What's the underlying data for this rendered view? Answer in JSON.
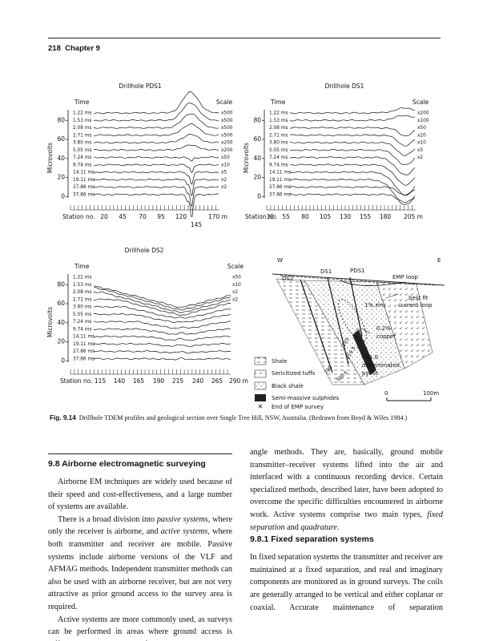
{
  "header": {
    "page": "218",
    "chapter": "Chapter 9"
  },
  "figure": {
    "times": [
      "1.22 ms",
      "1.53 ms",
      "2.08 ms",
      "2.71 ms",
      "3.80 ms",
      "5.05 ms",
      "7.24 ms",
      "9.74 ms",
      "14.11 ms",
      "19.11 ms",
      "27.86 ms",
      "37.86 ms"
    ],
    "panels": [
      {
        "title": "Drillhole PDS1",
        "time_heading": "Time",
        "scale_heading": "Scale",
        "y_label": "Microvolts",
        "y_ticks": [
          "80",
          "60",
          "40",
          "20",
          "0"
        ],
        "scales": [
          "x500",
          "x500",
          "x500",
          "x500",
          "x200",
          "x200",
          "x50",
          "x10",
          "x5",
          "x2",
          "x2"
        ],
        "station_label": "Station no.",
        "stations": [
          "20",
          "45",
          "70",
          "95",
          "120",
          "170 m"
        ],
        "extra_station": "145"
      },
      {
        "title": "Drillhole  DS1",
        "time_heading": "Time",
        "scale_heading": "Scale",
        "y_label": "Microvolts",
        "y_ticks": [
          "80",
          "60",
          "40",
          "20",
          "0"
        ],
        "scales": [
          "x200",
          "x100",
          "x50",
          "x20",
          "x10",
          "x5",
          "x2"
        ],
        "station_label": "Station no.",
        "stations": [
          "30",
          "55",
          "80",
          "105",
          "130",
          "155",
          "180",
          "205 m"
        ]
      },
      {
        "title": "Drillhole  DS2",
        "time_heading": "Time",
        "scale_heading": "Scale",
        "y_label": "Microvolts",
        "y_ticks": [
          "80",
          "60",
          "40",
          "20",
          "0"
        ],
        "scales": [
          "x50",
          "x10",
          "x2",
          "x2"
        ],
        "station_label": "Station no.",
        "stations": [
          "115",
          "140",
          "165",
          "190",
          "215",
          "240",
          "265",
          "290 m"
        ]
      }
    ],
    "section": {
      "west": "W",
      "east": "E",
      "holes": [
        "DS2",
        "DS1",
        "PDS1"
      ],
      "emp_loop": "EMP loop",
      "best_fit": [
        "best fit",
        "current loop"
      ],
      "zinc": "1% zinc",
      "copper": [
        "0.2%",
        "copper"
      ],
      "pyrite": [
        "241.0",
        "disseminated",
        "pyrite"
      ],
      "depths": [
        "205",
        "170",
        "219.5",
        "290",
        "300.6"
      ],
      "legend": [
        "Shale",
        "Sericitized tuffs",
        "Black shale",
        "Semi-massive sulphides",
        "End of EMP survey"
      ],
      "scale_bar": [
        "0",
        "100m"
      ]
    },
    "caption": {
      "label": "Fig. 9.14",
      "text": "Drillhole TDEM profiles and geological section over Single Tree Hill, NSW, Australia. (Redrawn from Boyd & Wiles 1984.)"
    }
  },
  "body": {
    "left": [
      {
        "heading": "9.8  Airborne electromagnetic surveying"
      },
      {
        "runs": [
          "Airborne EM techniques are widely used because of their speed and cost-effectiveness, and a large number of systems are available."
        ]
      },
      {
        "runs": [
          "There is a broad division into ",
          {
            "em": "passive systems"
          },
          ", where only the receiver is airborne, and ",
          {
            "em": "active systems"
          },
          ", where both transmitter and receiver are mobile. Passive systems include airborne versions of the VLF and AFMAG methods. Independent transmitter methods can also be used with an airborne receiver, but are not very attractive as prior ground access to the survey area is required."
        ]
      },
      {
        "runs": [
          "Active systems are more commonly used, as surveys can be performed in areas where ground access is difficult and provide more information than the passive tilt-"
        ],
        "cont": true
      }
    ],
    "right": [
      {
        "runs": [
          "angle methods. They are, basically, ground mobile transmitter–receiver systems lifted into the air and interfaced with a continuous recording device. Certain specialized methods, described later, have been adopted to overcome the specific difficulties encountered in airborne work. Active systems comprise two main types, ",
          {
            "em": "fixed separation"
          },
          " and ",
          {
            "em": "quadrature"
          },
          "."
        ],
        "noindent": true
      },
      {
        "heading": "9.8.1  Fixed separation systems"
      },
      {
        "runs": [
          "In fixed separation systems the transmitter and receiver are maintained at a fixed separation, and real and imaginary components are monitored as in ground surveys. The coils are generally arranged to be vertical and either coplanar or coaxial. Accurate maintenance of separation"
        ],
        "noindent": true,
        "cont": true
      }
    ]
  }
}
